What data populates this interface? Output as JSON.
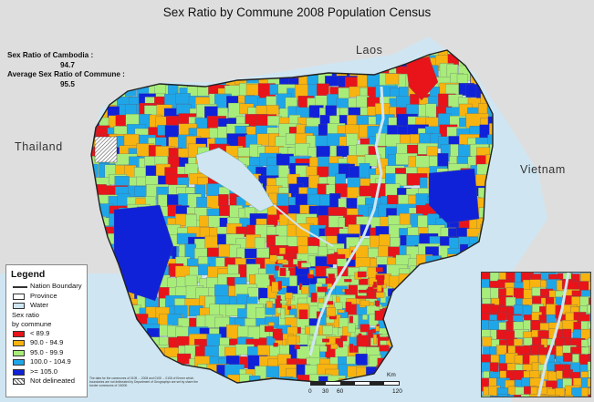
{
  "title": "Sex Ratio by Commune  2008 Population Census",
  "stats": {
    "cambodia_label": "Sex Ratio of Cambodia :",
    "cambodia_value": "94.7",
    "commune_label": "Average Sex Ratio of Commune :",
    "commune_value": "95.5"
  },
  "countries": {
    "laos": "Laos",
    "thailand": "Thailand",
    "vietnam": "Vietnam"
  },
  "legend": {
    "title": "Legend",
    "boundary_items": [
      {
        "label": "Nation Boundary",
        "kind": "line"
      },
      {
        "label": "Province",
        "kind": "box",
        "color": "#ffffff"
      },
      {
        "label": "Water",
        "kind": "box",
        "color": "#cfe6f2"
      }
    ],
    "group_title": "Sex ratio",
    "group_subtitle": "by commune",
    "classes": [
      {
        "label": "< 89.9",
        "color": "#e8141a"
      },
      {
        "label": "90.0 - 94.9",
        "color": "#f7b30f"
      },
      {
        "label": "95.0 - 99.9",
        "color": "#a8ec7a"
      },
      {
        "label": "100.0 - 104.9",
        "color": "#1fa6e8"
      },
      {
        "label": ">= 105.0",
        "color": "#1022d8"
      },
      {
        "label": "Not delineated",
        "color": "#bbbbbb"
      }
    ]
  },
  "scale": {
    "unit": "Km",
    "ticks": [
      "0",
      "30",
      "60",
      "120"
    ]
  },
  "note": "The data for the communes of 0105 ... 2008 and 0105 ... 0105 of Khmer which boundaries are not delineated by Department of Geographyn are set by share the border communes of 1/6000.",
  "colors": {
    "land_other": "#dedede",
    "water": "#cfe6f2"
  }
}
